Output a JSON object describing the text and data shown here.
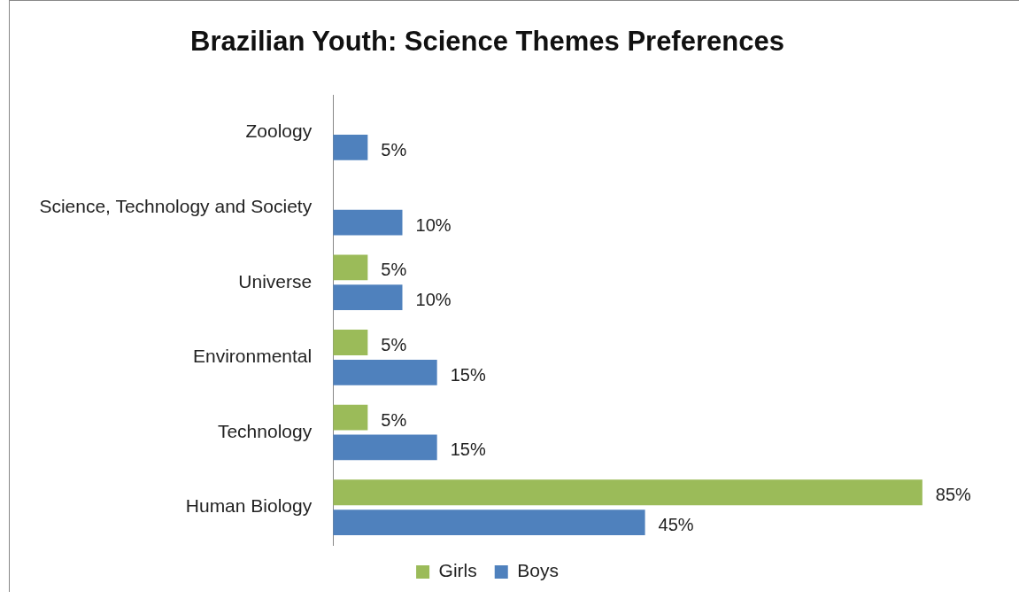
{
  "chart_data": {
    "type": "bar",
    "orientation": "horizontal",
    "title": "Brazilian Youth: Science Themes Preferences",
    "categories": [
      "Zoology",
      "Science, Technology and Society",
      "Universe",
      "Environmental",
      "Technology",
      "Human Biology"
    ],
    "series": [
      {
        "name": "Girls",
        "color": "#9bbb59",
        "values": [
          null,
          null,
          5,
          5,
          5,
          85
        ],
        "value_labels": [
          null,
          null,
          "5%",
          "5%",
          "5%",
          "85%"
        ]
      },
      {
        "name": "Boys",
        "color": "#4f81bd",
        "values": [
          5,
          10,
          10,
          15,
          15,
          45
        ],
        "value_labels": [
          "5%",
          "10%",
          "10%",
          "15%",
          "15%",
          "45%"
        ]
      }
    ],
    "legend": "bottom"
  }
}
